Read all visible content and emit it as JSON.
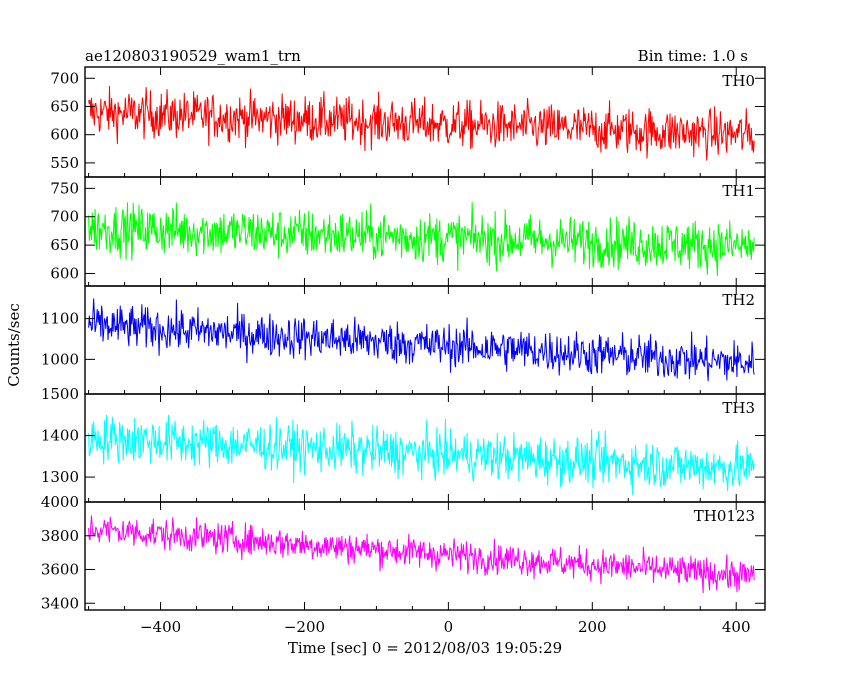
{
  "header": {
    "title": "ae120803190529_wam1_trn",
    "bin_time": "Bin time: 1.0 s"
  },
  "chart_data": {
    "type": "line",
    "xlabel": "Time [sec] 0 = 2012/08/03 19:05:29",
    "ylabel": "Counts/sec",
    "xlim": [
      -505,
      440
    ],
    "xticks": [
      -400,
      -200,
      0,
      200,
      400
    ],
    "xtick_labels": [
      "−400",
      "−200",
      "0",
      "200",
      "400"
    ],
    "x_start": -500,
    "x_end": 425,
    "bin_seconds": 1.0,
    "panels": [
      {
        "name": "TH0",
        "color": "#ff0000",
        "ylim": [
          525,
          720
        ],
        "yticks": [
          550,
          600,
          650,
          700
        ],
        "trend": [
          640,
          600
        ],
        "noise": 38
      },
      {
        "name": "TH1",
        "color": "#00ff00",
        "ylim": [
          578,
          770
        ],
        "yticks": [
          600,
          650,
          700,
          750
        ],
        "trend": [
          680,
          648
        ],
        "noise": 40
      },
      {
        "name": "TH2",
        "color": "#0000ff",
        "ylim": [
          915,
          1180
        ],
        "yticks": [
          1000,
          1100
        ],
        "trend": [
          1085,
          990
        ],
        "noise": 48
      },
      {
        "name": "TH3",
        "color": "#00ffff",
        "ylim": [
          1240,
          1500
        ],
        "yticks": [
          1300,
          1400,
          1500
        ],
        "trend": [
          1395,
          1320
        ],
        "noise": 52
      },
      {
        "name": "TH0123",
        "color": "#ff00ff",
        "ylim": [
          3360,
          4000
        ],
        "yticks": [
          3400,
          3600,
          3800,
          4000
        ],
        "trend": [
          3840,
          3560
        ],
        "noise": 85
      }
    ]
  }
}
